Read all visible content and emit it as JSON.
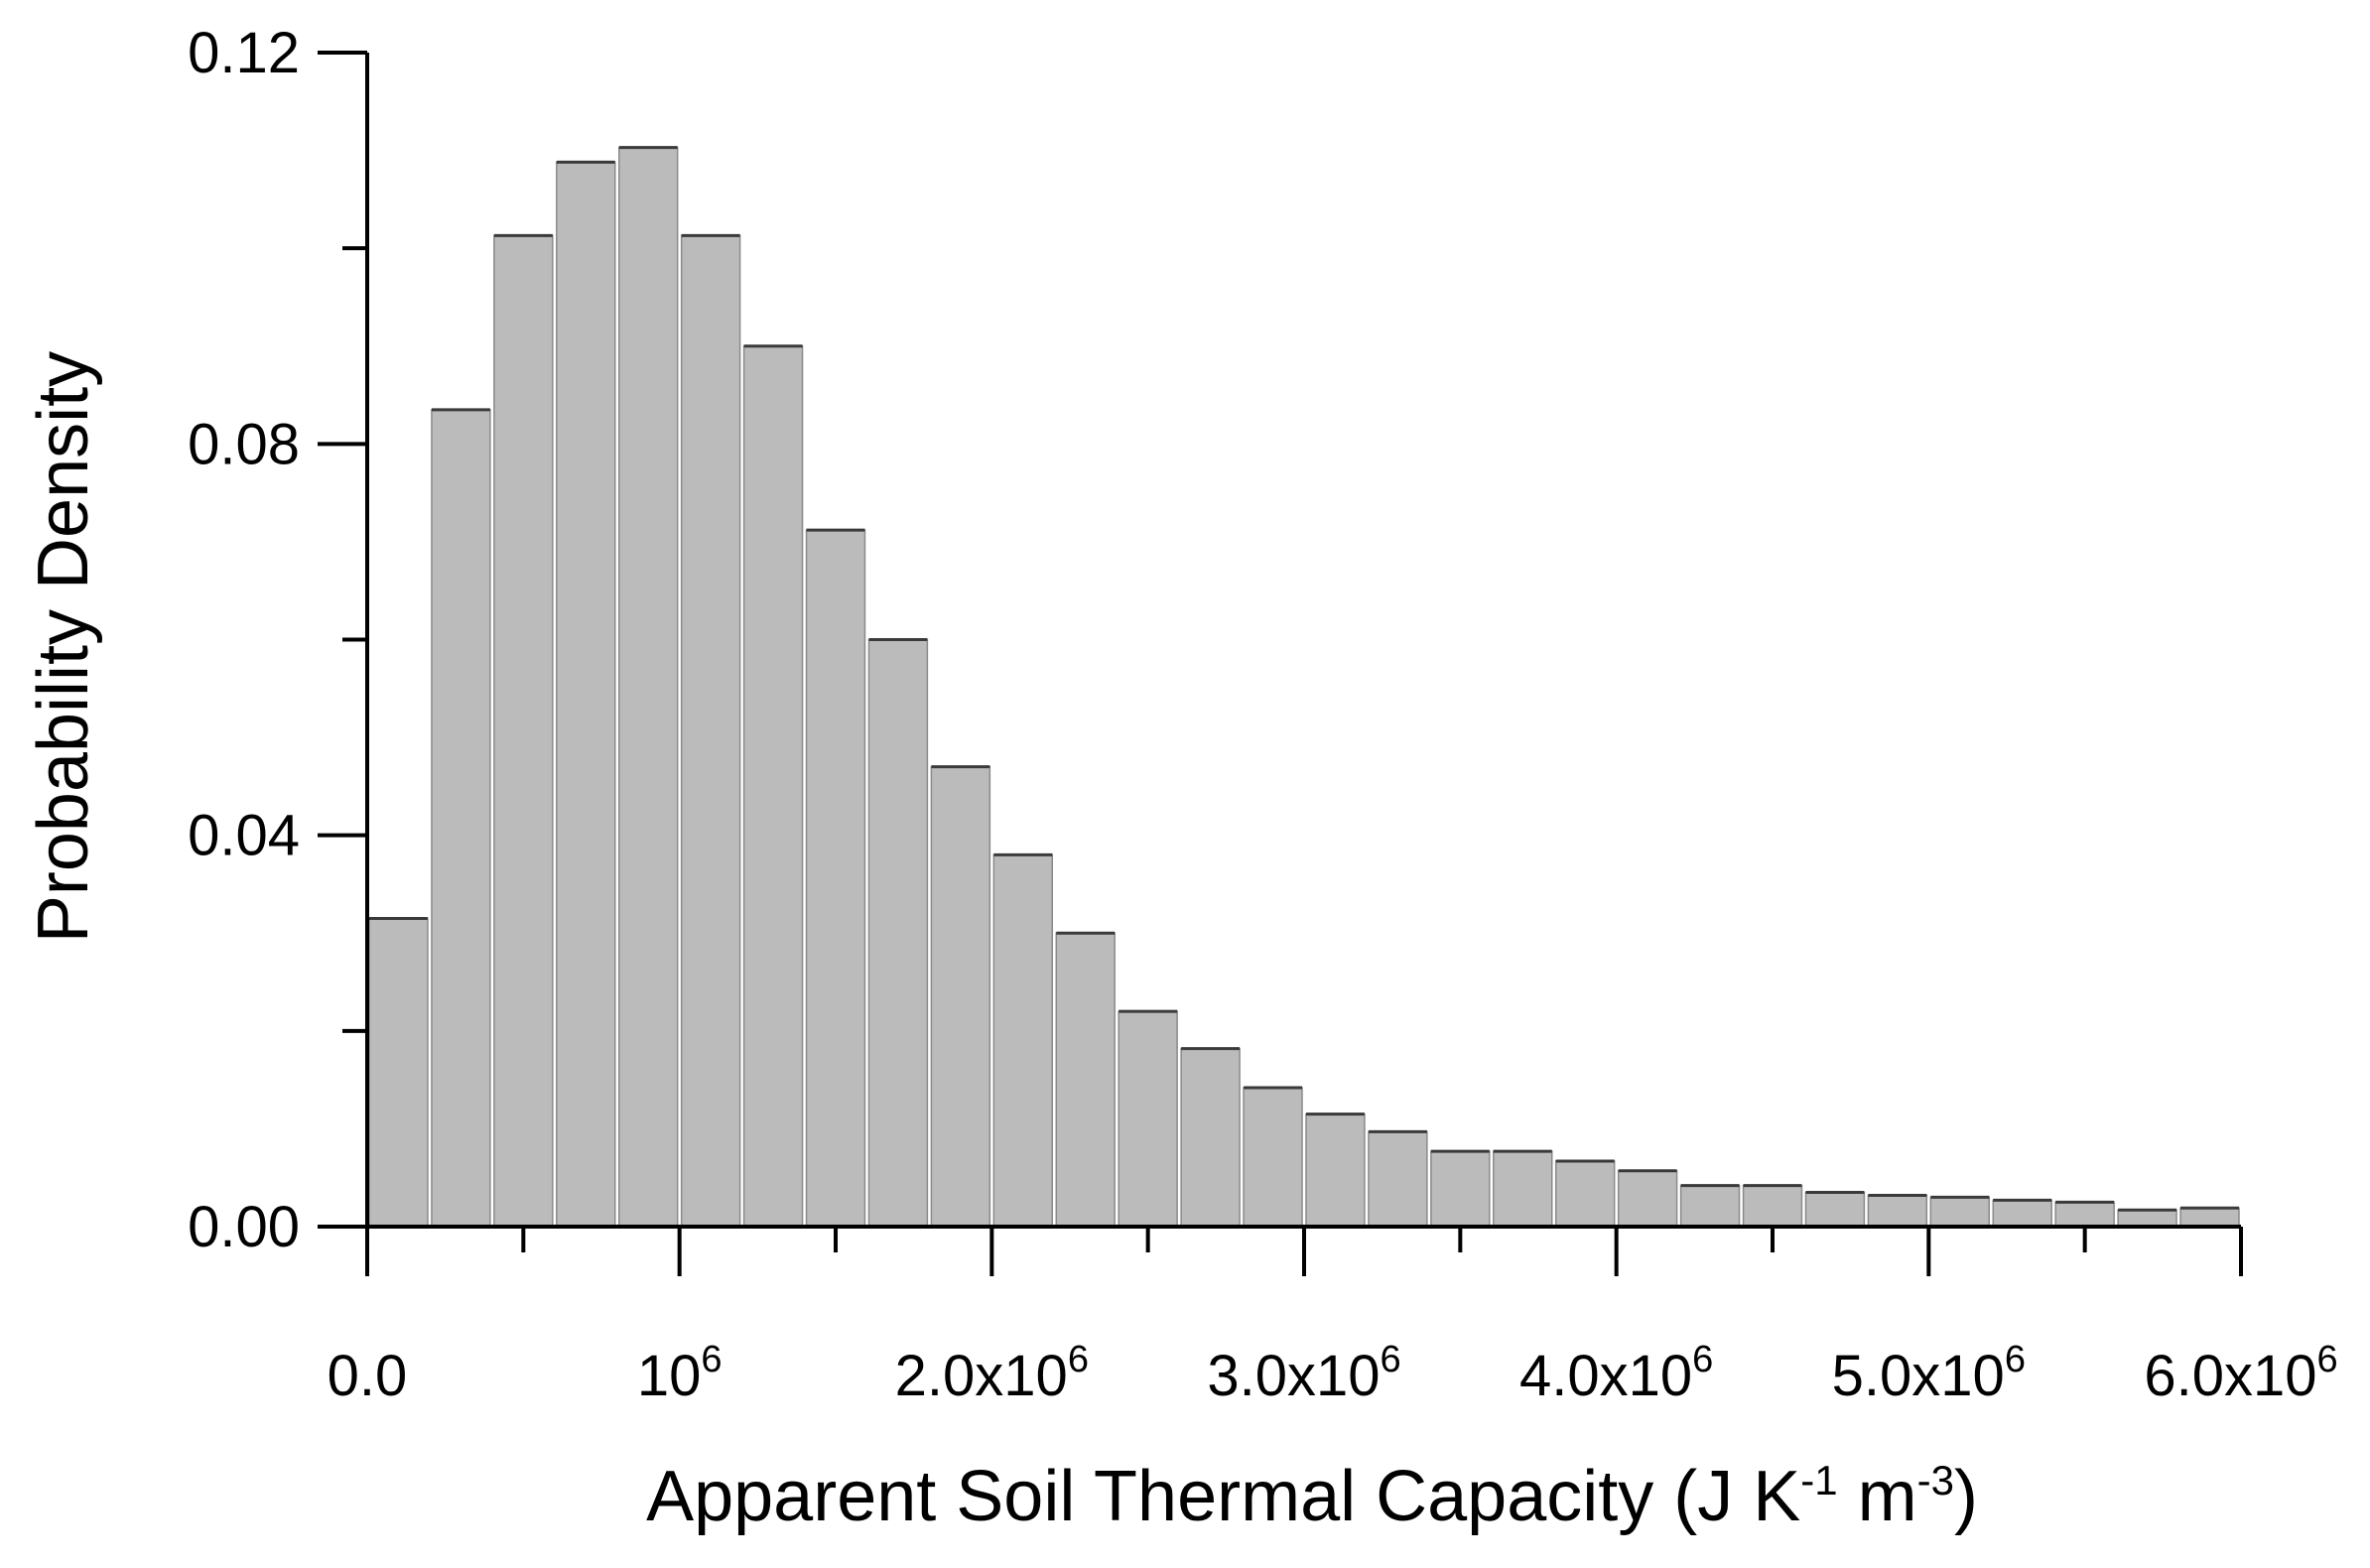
{
  "chart_data": {
    "type": "bar",
    "title": "",
    "xlabel": "Apparent Soil Thermal Capacity (J K-1 m-3)",
    "xlabel_parts": {
      "main": "Apparent Soil Thermal Capacity (J K",
      "sup1": "-1",
      "mid": " m",
      "sup2": "-3",
      "end": ")"
    },
    "ylabel": "Probability Density",
    "xlim": [
      0,
      6000000
    ],
    "ylim": [
      0,
      0.12
    ],
    "bin_width": 200000,
    "bin_starts": [
      0,
      200000,
      400000,
      600000,
      800000,
      1000000,
      1200000,
      1400000,
      1600000,
      1800000,
      2000000,
      2200000,
      2400000,
      2600000,
      2800000,
      3000000,
      3200000,
      3400000,
      3600000,
      3800000,
      4000000,
      4200000,
      4400000,
      4600000,
      4800000,
      5000000,
      5200000,
      5400000,
      5600000,
      5800000
    ],
    "values": [
      0.0315,
      0.0835,
      0.1013,
      0.1088,
      0.1103,
      0.1013,
      0.09,
      0.0712,
      0.06,
      0.047,
      0.038,
      0.03,
      0.022,
      0.0182,
      0.0142,
      0.0115,
      0.0097,
      0.0077,
      0.0077,
      0.0067,
      0.0057,
      0.0042,
      0.0042,
      0.0035,
      0.0032,
      0.003,
      0.0027,
      0.0025,
      0.0017,
      0.0019
    ],
    "bar_color": "#bbbbbb",
    "x_ticks": [
      {
        "value": 0,
        "base": "0.0",
        "exp": ""
      },
      {
        "value": 1000000,
        "base": "10",
        "exp": "6"
      },
      {
        "value": 2000000,
        "base": "2.0x10",
        "exp": "6"
      },
      {
        "value": 3000000,
        "base": "3.0x10",
        "exp": "6"
      },
      {
        "value": 4000000,
        "base": "4.0x10",
        "exp": "6"
      },
      {
        "value": 5000000,
        "base": "5.0x10",
        "exp": "6"
      },
      {
        "value": 6000000,
        "base": "6.0x10",
        "exp": "6"
      }
    ],
    "x_minor_ticks": [
      500000,
      1500000,
      2500000,
      3500000,
      4500000,
      5500000
    ],
    "y_ticks": [
      {
        "value": 0,
        "label": "0.00"
      },
      {
        "value": 0.04,
        "label": "0.04"
      },
      {
        "value": 0.08,
        "label": "0.08"
      },
      {
        "value": 0.12,
        "label": "0.12"
      }
    ],
    "y_minor_ticks": [
      0.02,
      0.06,
      0.1
    ],
    "grid": false,
    "legend": "none"
  }
}
